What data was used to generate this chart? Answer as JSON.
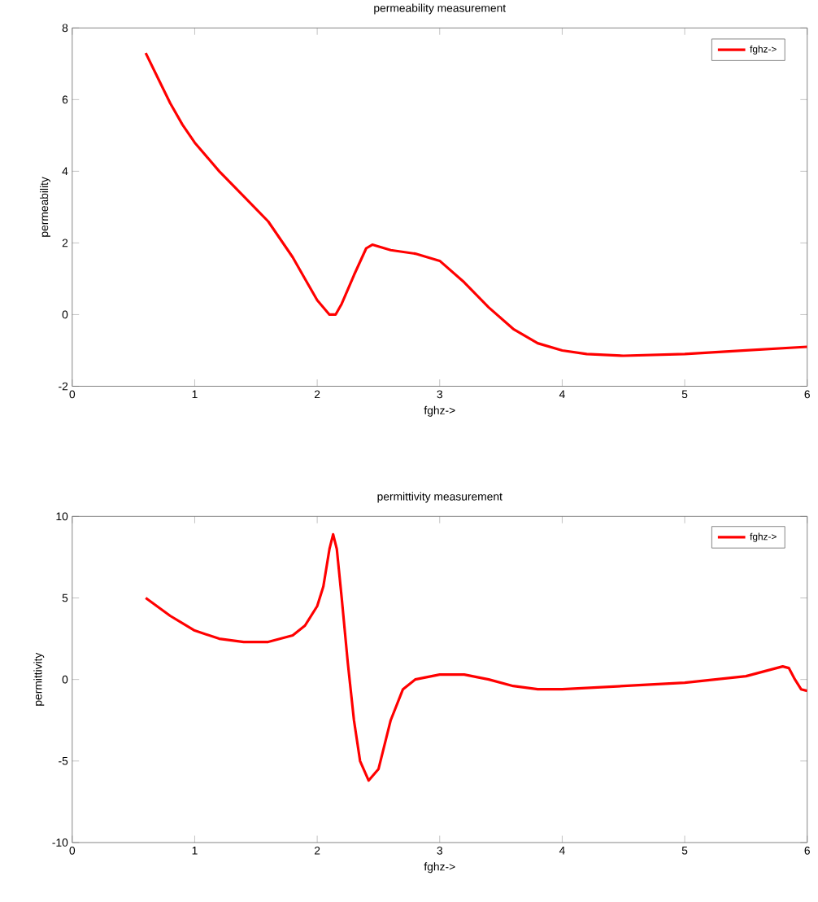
{
  "chart_data": [
    {
      "type": "line",
      "title": "permeability measurement",
      "xlabel": "fghz->",
      "ylabel": "permeability",
      "x": [
        0.6,
        0.7,
        0.8,
        0.9,
        1.0,
        1.2,
        1.4,
        1.6,
        1.8,
        1.9,
        2.0,
        2.1,
        2.15,
        2.2,
        2.3,
        2.4,
        2.45,
        2.6,
        2.8,
        3.0,
        3.2,
        3.4,
        3.6,
        3.8,
        4.0,
        4.2,
        4.5,
        5.0,
        5.5,
        6.0
      ],
      "series": [
        {
          "name": "fghz->",
          "color": "#ff0000",
          "values": [
            7.3,
            6.6,
            5.9,
            5.3,
            4.8,
            4.0,
            3.3,
            2.6,
            1.6,
            1.0,
            0.4,
            0.0,
            0.0,
            0.3,
            1.1,
            1.85,
            1.95,
            1.8,
            1.7,
            1.5,
            0.9,
            0.2,
            -0.4,
            -0.8,
            -1.0,
            -1.1,
            -1.15,
            -1.1,
            -1.0,
            -0.9
          ]
        }
      ],
      "xlim": [
        0,
        6
      ],
      "ylim": [
        -2,
        8
      ],
      "xticks": [
        0,
        1,
        2,
        3,
        4,
        5,
        6
      ],
      "yticks": [
        -2,
        0,
        2,
        4,
        6,
        8
      ],
      "legend": "top right"
    },
    {
      "type": "line",
      "title": "permittivity measurement",
      "xlabel": "fghz->",
      "ylabel": "permittivity",
      "x": [
        0.6,
        0.8,
        1.0,
        1.2,
        1.4,
        1.6,
        1.8,
        1.9,
        2.0,
        2.05,
        2.1,
        2.13,
        2.16,
        2.2,
        2.25,
        2.3,
        2.35,
        2.42,
        2.5,
        2.6,
        2.7,
        2.8,
        3.0,
        3.2,
        3.4,
        3.6,
        3.8,
        4.0,
        4.5,
        5.0,
        5.5,
        5.8,
        5.85,
        5.9,
        5.95,
        6.0
      ],
      "series": [
        {
          "name": "fghz->",
          "color": "#ff0000",
          "values": [
            5.0,
            3.9,
            3.0,
            2.5,
            2.3,
            2.3,
            2.7,
            3.3,
            4.5,
            5.7,
            8.0,
            8.9,
            8.0,
            5.0,
            1.0,
            -2.5,
            -5.0,
            -6.2,
            -5.5,
            -2.5,
            -0.6,
            0.0,
            0.3,
            0.3,
            0.0,
            -0.4,
            -0.6,
            -0.6,
            -0.4,
            -0.2,
            0.2,
            0.8,
            0.7,
            0.0,
            -0.6,
            -0.7
          ]
        }
      ],
      "xlim": [
        0,
        6
      ],
      "ylim": [
        -10,
        10
      ],
      "xticks": [
        0,
        1,
        2,
        3,
        4,
        5,
        6
      ],
      "yticks": [
        -10,
        -5,
        0,
        5,
        10
      ],
      "legend": "top right"
    }
  ]
}
